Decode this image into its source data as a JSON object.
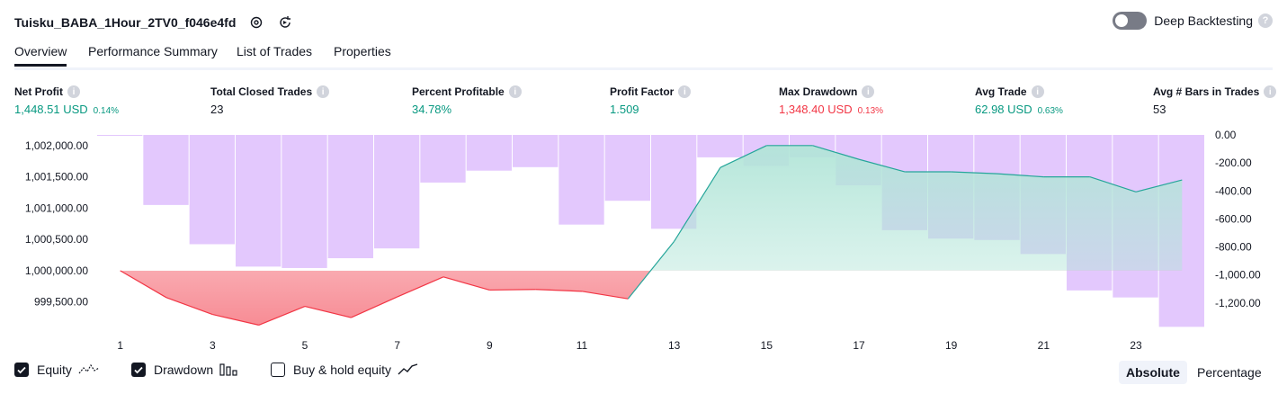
{
  "header": {
    "title": "Tuisku_BABA_1Hour_2TV0_f046e4fd",
    "deep_backtesting_label": "Deep Backtesting",
    "deep_backtesting_enabled": false,
    "help_glyph": "?"
  },
  "tabs": [
    {
      "label": "Overview",
      "active": true
    },
    {
      "label": "Performance Summary",
      "active": false
    },
    {
      "label": "List of Trades",
      "active": false
    },
    {
      "label": "Properties",
      "active": false
    }
  ],
  "metrics": [
    {
      "label": "Net Profit",
      "value": "1,448.51 USD",
      "pct": "0.14%",
      "tone": "green"
    },
    {
      "label": "Total Closed Trades",
      "value": "23",
      "pct": "",
      "tone": "dark"
    },
    {
      "label": "Percent Profitable",
      "value": "34.78%",
      "pct": "",
      "tone": "green"
    },
    {
      "label": "Profit Factor",
      "value": "1.509",
      "pct": "",
      "tone": "green"
    },
    {
      "label": "Max Drawdown",
      "value": "1,348.40 USD",
      "pct": "0.13%",
      "tone": "red"
    },
    {
      "label": "Avg Trade",
      "value": "62.98 USD",
      "pct": "0.63%",
      "tone": "green"
    },
    {
      "label": "Avg # Bars in Trades",
      "value": "53",
      "pct": "",
      "tone": "dark"
    }
  ],
  "info_glyph": "i",
  "colors": {
    "equity_up": "#26a69a",
    "equity_down": "#f23645",
    "drawdown_bar": "#e1c5fd",
    "positive_fill": "#cbeee5",
    "negative_fill": "#fbc9cc"
  },
  "chart_data": {
    "type": "line",
    "x_ticks": [
      "1",
      "3",
      "5",
      "7",
      "9",
      "11",
      "13",
      "15",
      "17",
      "19",
      "21",
      "23"
    ],
    "left_axis": {
      "ticks": [
        "1,002,000.00",
        "1,001,500.00",
        "1,001,000.00",
        "1,000,500.00",
        "1,000,000.00",
        "999,500.00"
      ],
      "ylim": [
        999150,
        1002170
      ]
    },
    "right_axis": {
      "ticks": [
        "0.00",
        "-200.00",
        "-400.00",
        "-600.00",
        "-800.00",
        "-1,000.00",
        "-1,200.00"
      ],
      "ylim": [
        -1348.4,
        0
      ]
    },
    "baseline": 1000000,
    "x": [
      1,
      2,
      3,
      4,
      5,
      6,
      7,
      8,
      9,
      10,
      11,
      12,
      13,
      14,
      15,
      16,
      17,
      18,
      19,
      20,
      21,
      22,
      23,
      24
    ],
    "series": [
      {
        "kind": "equity",
        "values": [
          1000000,
          999570,
          999300,
          999130,
          999430,
          999250,
          999580,
          999900,
          999690,
          999700,
          999670,
          999550,
          1000470,
          1001650,
          1002000,
          1002000,
          1001780,
          1001580,
          1001580,
          1001550,
          1001500,
          1001500,
          1001260,
          1001450
        ]
      },
      {
        "kind": "drawdown",
        "values": [
          0,
          -500,
          -780,
          -940,
          -950,
          -880,
          -810,
          -340,
          -255,
          -230,
          -640,
          -470,
          -670,
          -160,
          -220,
          -160,
          -360,
          -680,
          -740,
          -750,
          -850,
          -1110,
          -1160,
          -1370
        ]
      }
    ]
  },
  "legend": {
    "items": [
      {
        "label": "Equity",
        "checked": true,
        "icon": "equity-line-icon"
      },
      {
        "label": "Drawdown",
        "checked": true,
        "icon": "drawdown-bars-icon"
      },
      {
        "label": "Buy & hold equity",
        "checked": false,
        "icon": "buy-hold-line-icon"
      }
    ],
    "modes": [
      {
        "label": "Absolute",
        "active": true
      },
      {
        "label": "Percentage",
        "active": false
      }
    ]
  }
}
